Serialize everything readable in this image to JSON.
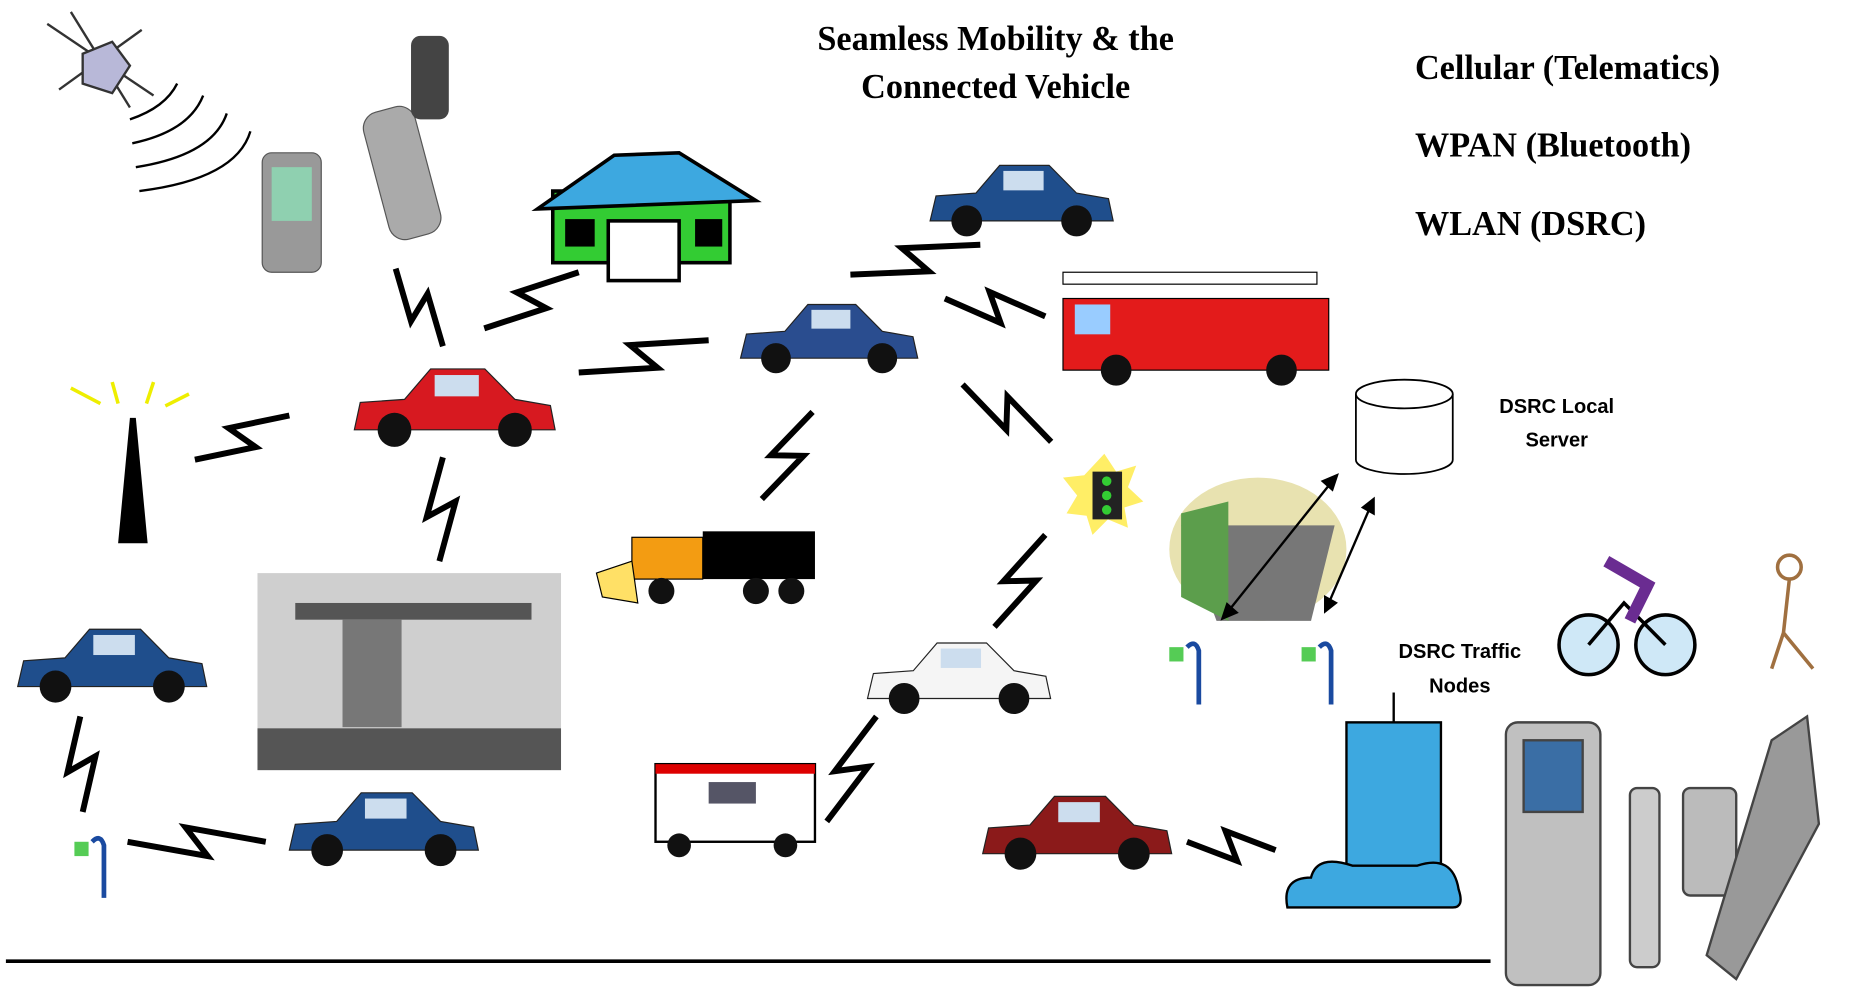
{
  "header": {
    "title": [
      "Seamless Mobility & the",
      "Connected Vehicle"
    ]
  },
  "legend": [
    "Cellular (Telematics)",
    "WPAN (Bluetooth)",
    "WLAN (DSRC)"
  ],
  "labels": {
    "local_server": [
      "DSRC Local",
      "Server"
    ],
    "traffic_nodes": [
      "DSRC Traffic",
      "Nodes"
    ]
  }
}
